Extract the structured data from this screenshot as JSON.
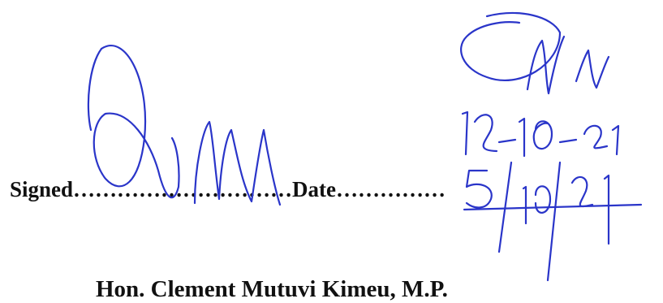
{
  "signature_block": {
    "signed_label": "Signed",
    "signed_dots": "…………………………",
    "date_label": "Date",
    "date_dots": "……………",
    "signer_name": "Hon. Clement Mutuvi Kimeu, M.P.",
    "handwritten_signature_1": "",
    "handwritten_signature_2": "",
    "handwritten_date_1": "12-10-21",
    "handwritten_date_2": "5/10/21"
  },
  "colors": {
    "ink": "#2a35c9",
    "text": "#111111"
  }
}
